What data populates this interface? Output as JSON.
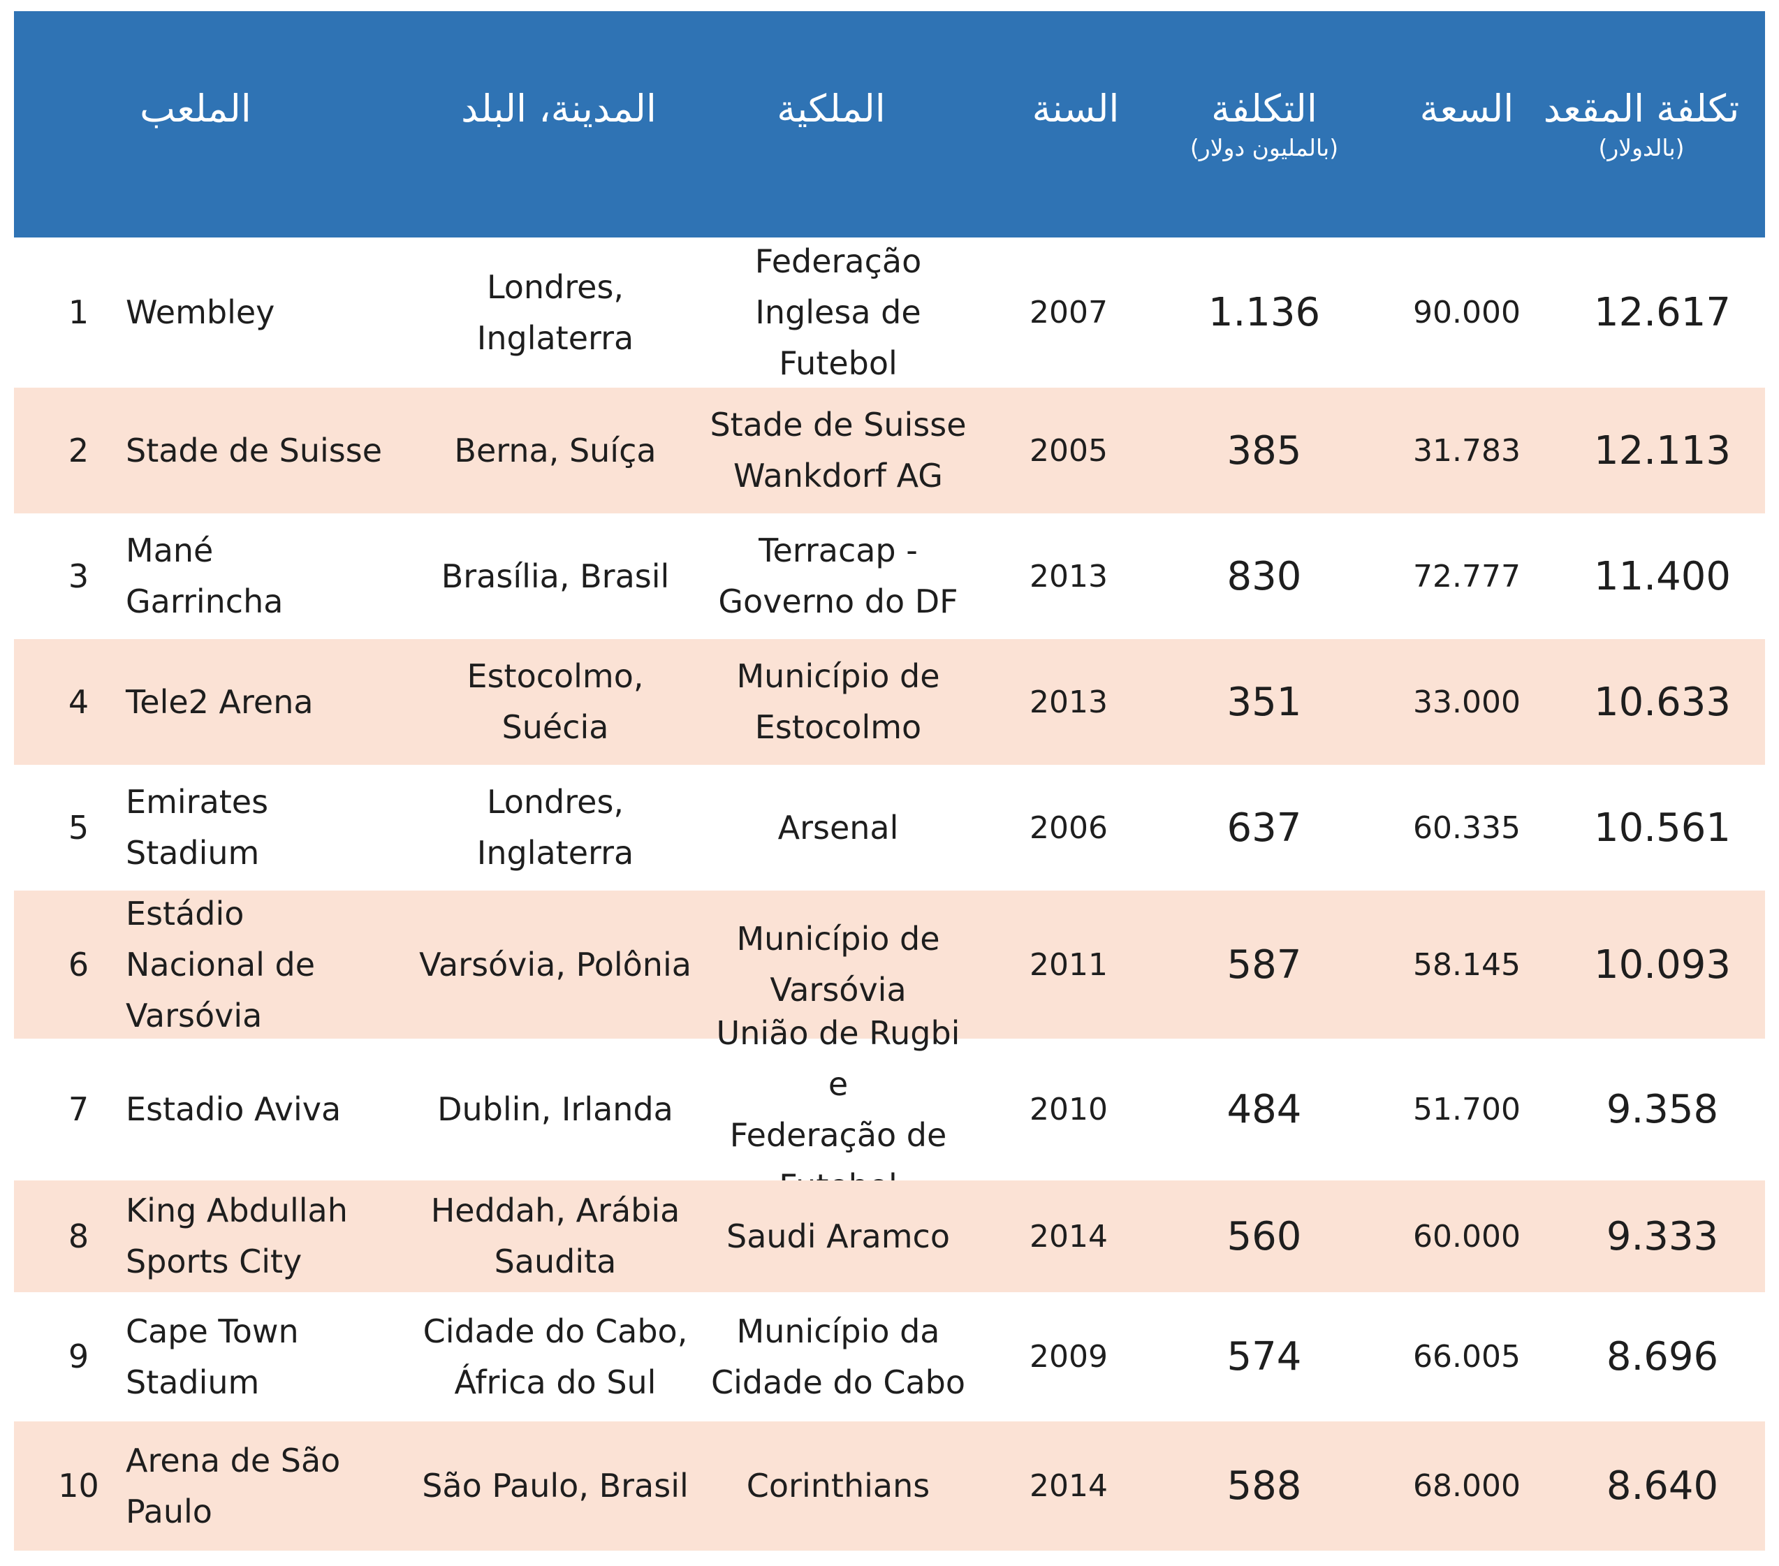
{
  "headers": {
    "stadium": "الملعب",
    "city_country": "المدينة، البلد",
    "ownership": "الملكية",
    "year": "السنة",
    "cost": "التكلفة",
    "cost_unit": "(بالمليون دولار)",
    "capacity": "السعة",
    "seat_cost": "تكلفة المقعد",
    "seat_cost_unit": "(بالدولار)"
  },
  "colors": {
    "header_bg": "#2f73b4",
    "header_text": "#ffffff",
    "row_shade": "#fbe2d5",
    "row_plain": "#ffffff"
  },
  "chart_data": {
    "type": "table",
    "columns": [
      "",
      "الملعب",
      "المدينة، البلد",
      "الملكية",
      "السنة",
      "التكلفة (بالمليون دولار)",
      "السعة",
      "تكلفة المقعد (بالدولار)"
    ],
    "rows": [
      {
        "rank": "1",
        "stadium": [
          "Wembley"
        ],
        "city": [
          "Londres,",
          "Inglaterra"
        ],
        "owner": [
          "Federação",
          "Inglesa de",
          "Futebol"
        ],
        "year": "2007",
        "cost": "1.136",
        "capacity": "90.000",
        "seat_cost": "12.617"
      },
      {
        "rank": "2",
        "stadium": [
          "Stade de Suisse"
        ],
        "city": [
          "Berna, Suíça"
        ],
        "owner": [
          "Stade de Suisse",
          "Wankdorf AG"
        ],
        "year": "2005",
        "cost": "385",
        "capacity": "31.783",
        "seat_cost": "12.113"
      },
      {
        "rank": "3",
        "stadium": [
          "Mané",
          "Garrincha"
        ],
        "city": [
          "Brasília, Brasil"
        ],
        "owner": [
          "Terracap -",
          "Governo do DF"
        ],
        "year": "2013",
        "cost": "830",
        "capacity": "72.777",
        "seat_cost": "11.400"
      },
      {
        "rank": "4",
        "stadium": [
          "Tele2 Arena"
        ],
        "city": [
          "Estocolmo,",
          "Suécia"
        ],
        "owner": [
          "Município de",
          "Estocolmo"
        ],
        "year": "2013",
        "cost": "351",
        "capacity": "33.000",
        "seat_cost": "10.633"
      },
      {
        "rank": "5",
        "stadium": [
          "Emirates",
          "Stadium"
        ],
        "city": [
          "Londres,",
          "Inglaterra"
        ],
        "owner": [
          "Arsenal"
        ],
        "year": "2006",
        "cost": "637",
        "capacity": "60.335",
        "seat_cost": "10.561"
      },
      {
        "rank": "6",
        "stadium": [
          "Estádio",
          "Nacional de",
          "Varsóvia"
        ],
        "city": [
          "Varsóvia, Polônia"
        ],
        "owner": [
          "Município de",
          "Varsóvia"
        ],
        "year": "2011",
        "cost": "587",
        "capacity": "58.145",
        "seat_cost": "10.093"
      },
      {
        "rank": "7",
        "stadium": [
          "Estadio Aviva"
        ],
        "city": [
          "Dublin, Irlanda"
        ],
        "owner": [
          "União de Rugbi e",
          "Federação de",
          "Futebol"
        ],
        "year": "2010",
        "cost": "484",
        "capacity": "51.700",
        "seat_cost": "9.358"
      },
      {
        "rank": "8",
        "stadium": [
          "King Abdullah",
          "Sports City"
        ],
        "city": [
          "Heddah, Arábia",
          "Saudita"
        ],
        "owner": [
          "Saudi Aramco"
        ],
        "year": "2014",
        "cost": "560",
        "capacity": "60.000",
        "seat_cost": "9.333"
      },
      {
        "rank": "9",
        "stadium": [
          "Cape Town",
          "Stadium"
        ],
        "city": [
          "Cidade do Cabo,",
          "África do Sul"
        ],
        "owner": [
          "Município da",
          "Cidade do Cabo"
        ],
        "year": "2009",
        "cost": "574",
        "capacity": "66.005",
        "seat_cost": "8.696"
      },
      {
        "rank": "10",
        "stadium": [
          "Arena de São",
          "Paulo"
        ],
        "city": [
          "São Paulo, Brasil"
        ],
        "owner": [
          "Corinthians"
        ],
        "year": "2014",
        "cost": "588",
        "capacity": "68.000",
        "seat_cost": "8.640"
      }
    ]
  }
}
